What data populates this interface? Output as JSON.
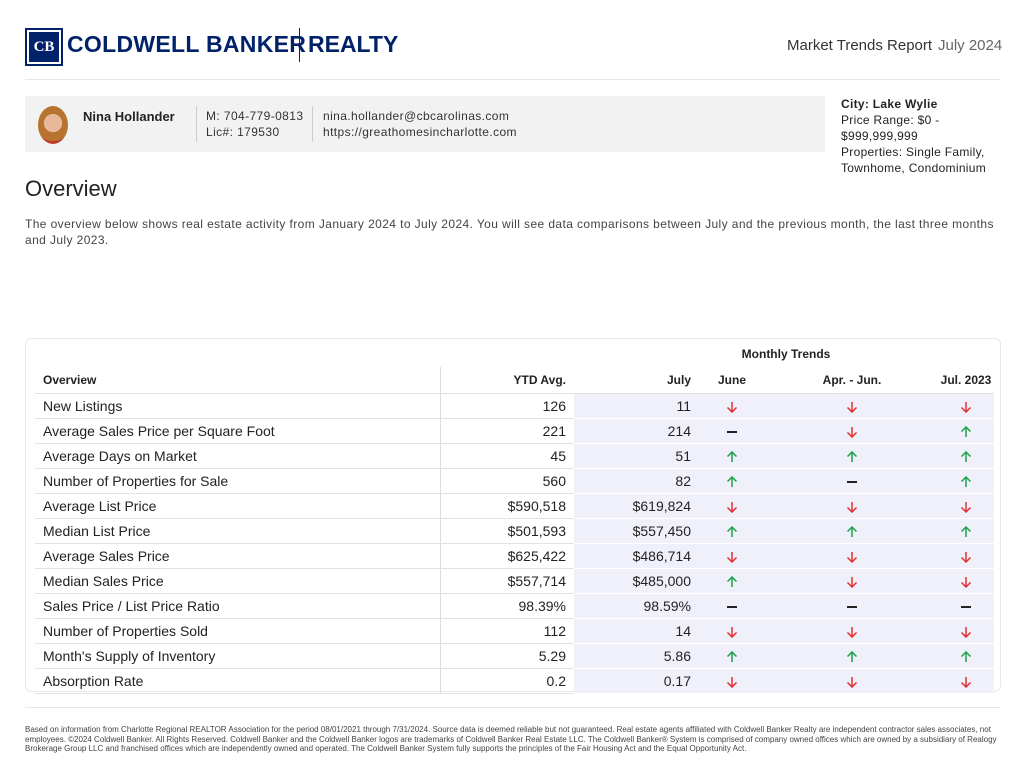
{
  "header": {
    "brand": "COLDWELL BANKER",
    "brand_sub": "REALTY",
    "logo": "CB",
    "report_title": "Market Trends Report",
    "date": "July 2024"
  },
  "agent": {
    "name": "Nina Hollander",
    "phone": "M: 704-779-0813",
    "license": "Lic#: 179530",
    "email": "nina.hollander@cbcarolinas.com",
    "website": "https://greathomesincharlotte.com"
  },
  "filters": {
    "city": "City: Lake Wylie",
    "price_range": "Price Range: $0 - $999,999,999",
    "properties": "Properties: Single Family, Townhome, Condominium"
  },
  "overview": {
    "title": "Overview",
    "text": "The overview below shows real estate activity from January 2024 to July 2024. You will see data comparisons between July and the previous month, the last three months and July 2023."
  },
  "table": {
    "group_header": "Monthly Trends",
    "columns": [
      "Overview",
      "YTD Avg.",
      "July",
      "June",
      "Apr. - Jun.",
      "Jul. 2023"
    ],
    "rows": [
      [
        "New Listings",
        "126",
        "11"
      ],
      [
        "Average Sales Price per Square Foot",
        "221",
        "214"
      ],
      [
        "Average Days on Market",
        "45",
        "51"
      ],
      [
        "Number of Properties for Sale",
        "560",
        "82"
      ],
      [
        "Average List Price",
        "$590,518",
        "$619,824"
      ],
      [
        "Median List Price",
        "$501,593",
        "$557,450"
      ],
      [
        "Average Sales Price",
        "$625,422",
        "$486,714"
      ],
      [
        "Median Sales Price",
        "$557,714",
        "$485,000"
      ],
      [
        "Sales Price / List Price Ratio",
        "98.39%",
        "98.59%"
      ],
      [
        "Number of Properties Sold",
        "112",
        "14"
      ],
      [
        "Month's Supply of Inventory",
        "5.29",
        "5.86"
      ],
      [
        "Absorption Rate",
        "0.2",
        "0.17"
      ]
    ]
  },
  "footer": {
    "disclaimer": "Based on information from Charlotte Regional REALTOR Association for the period 08/01/2021 through 7/31/2024. Source data is deemed reliable but not guaranteed. Real estate agents affiliated with Coldwell Banker Realty are independent contractor sales associates, not employees. ©2024 Coldwell Banker. All Rights Reserved. Coldwell Banker and the Coldwell Banker logos are trademarks of Coldwell Banker Real Estate LLC. The Coldwell Banker® System is comprised of company owned offices which are owned by a subsidiary of Realogy Brokerage Group LLC and franchised offices which are independently owned and operated. The Coldwell Banker System fully supports the principles of the Fair Housing Act and the Equal Opportunity Act."
  }
}
